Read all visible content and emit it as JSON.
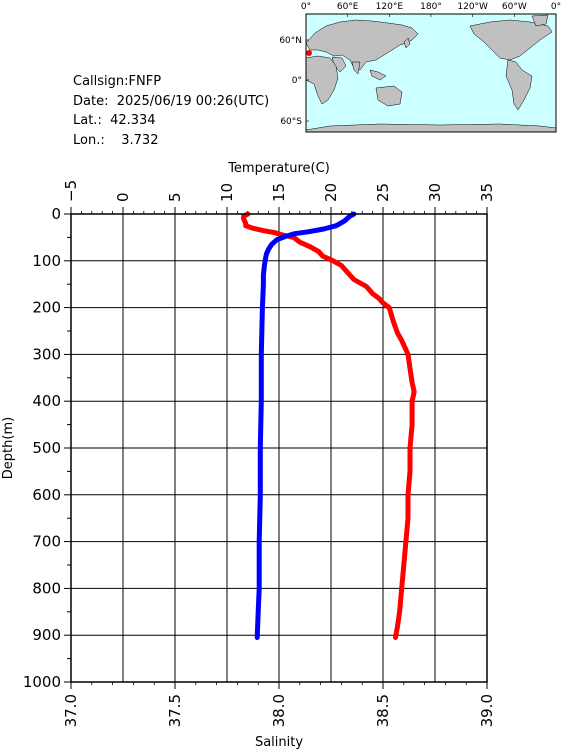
{
  "info": {
    "callsign": "Callsign:FNFP",
    "date": "Date:  2025/06/19 00:26(UTC)",
    "lat": "Lat.:  42.334",
    "lon": "Lon.:    3.732"
  },
  "map": {
    "ocean_color": "#ccffff",
    "land_color": "#c0c0c0",
    "marker_color": "#ff0000",
    "lon_labels": [
      "0°",
      "60°E",
      "120°E",
      "180°",
      "120°W",
      "60°W",
      "0°"
    ],
    "lat_labels": [
      "60°N",
      "0°",
      "60°S"
    ]
  },
  "chart_data": {
    "type": "line",
    "top_axis": {
      "title": "Temperature(C)",
      "range": [
        -5,
        35
      ],
      "ticks": [
        "−5",
        "0",
        "5",
        "10",
        "15",
        "20",
        "25",
        "30",
        "35"
      ]
    },
    "bottom_axis": {
      "title": "Salinity",
      "range": [
        37.0,
        39.0
      ],
      "ticks": [
        "37.0",
        "37.5",
        "38.0",
        "38.5",
        "39.0"
      ]
    },
    "left_axis": {
      "title": "Depth(m)",
      "range": [
        0,
        1000
      ],
      "inverted": true,
      "ticks": [
        "0",
        "100",
        "200",
        "300",
        "400",
        "500",
        "600",
        "700",
        "800",
        "900",
        "1000"
      ]
    },
    "grid": true,
    "series": [
      {
        "color": "#ff0000",
        "axis": "bottom",
        "points": [
          [
            37.85,
            0
          ],
          [
            37.83,
            5
          ],
          [
            37.83,
            10
          ],
          [
            37.84,
            20
          ],
          [
            37.84,
            25
          ],
          [
            37.87,
            30
          ],
          [
            37.92,
            35
          ],
          [
            37.98,
            40
          ],
          [
            38.02,
            45
          ],
          [
            38.07,
            50
          ],
          [
            38.1,
            60
          ],
          [
            38.15,
            70
          ],
          [
            38.19,
            80
          ],
          [
            38.21,
            90
          ],
          [
            38.26,
            100
          ],
          [
            38.3,
            110
          ],
          [
            38.33,
            125
          ],
          [
            38.36,
            140
          ],
          [
            38.42,
            155
          ],
          [
            38.45,
            170
          ],
          [
            38.48,
            180
          ],
          [
            38.5,
            190
          ],
          [
            38.53,
            200
          ],
          [
            38.55,
            230
          ],
          [
            38.57,
            255
          ],
          [
            38.59,
            270
          ],
          [
            38.6,
            280
          ],
          [
            38.62,
            300
          ],
          [
            38.63,
            330
          ],
          [
            38.64,
            360
          ],
          [
            38.65,
            380
          ],
          [
            38.64,
            400
          ],
          [
            38.64,
            450
          ],
          [
            38.63,
            500
          ],
          [
            38.63,
            550
          ],
          [
            38.62,
            600
          ],
          [
            38.62,
            650
          ],
          [
            38.61,
            700
          ],
          [
            38.6,
            750
          ],
          [
            38.59,
            800
          ],
          [
            38.58,
            850
          ],
          [
            38.57,
            880
          ],
          [
            38.56,
            905
          ]
        ]
      },
      {
        "color": "#0000ff",
        "axis": "top",
        "points": [
          [
            22.2,
            0
          ],
          [
            21.8,
            5
          ],
          [
            21.3,
            15
          ],
          [
            20.5,
            25
          ],
          [
            19.3,
            32
          ],
          [
            17.8,
            38
          ],
          [
            16.5,
            42
          ],
          [
            15.6,
            48
          ],
          [
            14.8,
            55
          ],
          [
            14.3,
            65
          ],
          [
            14.0,
            75
          ],
          [
            13.8,
            85
          ],
          [
            13.7,
            95
          ],
          [
            13.6,
            110
          ],
          [
            13.5,
            130
          ],
          [
            13.5,
            150
          ],
          [
            13.4,
            200
          ],
          [
            13.3,
            300
          ],
          [
            13.3,
            400
          ],
          [
            13.2,
            500
          ],
          [
            13.2,
            600
          ],
          [
            13.1,
            700
          ],
          [
            13.1,
            800
          ],
          [
            13.0,
            850
          ],
          [
            12.9,
            905
          ]
        ]
      }
    ]
  }
}
